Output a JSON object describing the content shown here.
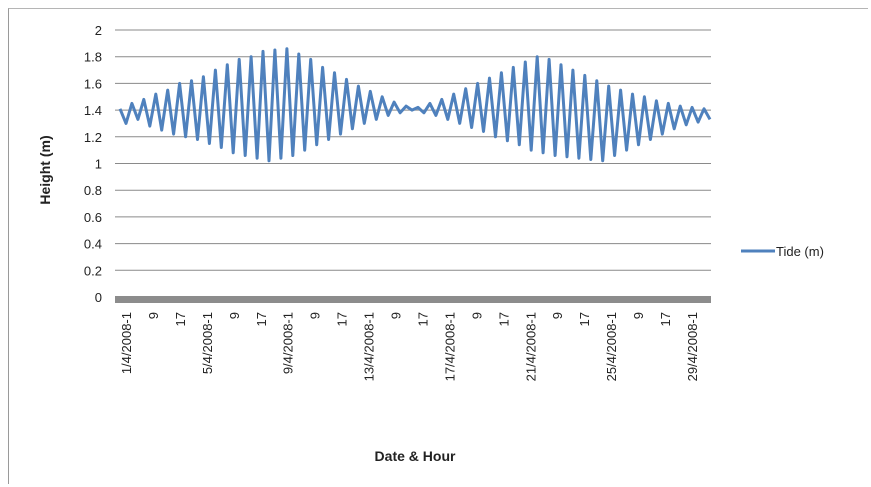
{
  "chart_data": {
    "type": "line",
    "title": "",
    "xlabel": "Date & Hour",
    "ylabel": "Height (m)",
    "ylim": [
      0,
      2
    ],
    "yticks": [
      "0",
      "0.2",
      "0.4",
      "0.6",
      "0.8",
      "1",
      "1.2",
      "1.4",
      "1.6",
      "1.8",
      "2"
    ],
    "x_tick_labels": [
      "1/4/2008-1",
      "9",
      "17",
      "5/4/2008-1",
      "9",
      "17",
      "9/4/2008-1",
      "9",
      "17",
      "13/4/2008-1",
      "9",
      "17",
      "17/4/2008-1",
      "9",
      "17",
      "21/4/2008-1",
      "9",
      "17",
      "25/4/2008-1",
      "9",
      "17",
      "29/4/2008-1"
    ],
    "grid": true,
    "legend": "right",
    "series": [
      {
        "name": "Tide (m)",
        "color": "#4f81bd",
        "values": [
          1.41,
          1.3,
          1.45,
          1.33,
          1.48,
          1.28,
          1.52,
          1.25,
          1.55,
          1.22,
          1.6,
          1.2,
          1.62,
          1.18,
          1.65,
          1.15,
          1.7,
          1.12,
          1.74,
          1.08,
          1.78,
          1.06,
          1.8,
          1.04,
          1.84,
          1.02,
          1.85,
          1.04,
          1.86,
          1.06,
          1.82,
          1.1,
          1.78,
          1.14,
          1.72,
          1.18,
          1.68,
          1.22,
          1.63,
          1.26,
          1.58,
          1.3,
          1.54,
          1.33,
          1.5,
          1.36,
          1.46,
          1.38,
          1.43,
          1.4,
          1.42,
          1.38,
          1.45,
          1.36,
          1.48,
          1.33,
          1.52,
          1.3,
          1.56,
          1.27,
          1.6,
          1.24,
          1.64,
          1.2,
          1.68,
          1.17,
          1.72,
          1.14,
          1.76,
          1.1,
          1.8,
          1.08,
          1.78,
          1.06,
          1.74,
          1.05,
          1.7,
          1.04,
          1.66,
          1.03,
          1.62,
          1.02,
          1.58,
          1.06,
          1.55,
          1.1,
          1.52,
          1.14,
          1.5,
          1.18,
          1.47,
          1.22,
          1.45,
          1.26,
          1.43,
          1.29,
          1.42,
          1.31,
          1.41,
          1.33
        ]
      }
    ]
  }
}
